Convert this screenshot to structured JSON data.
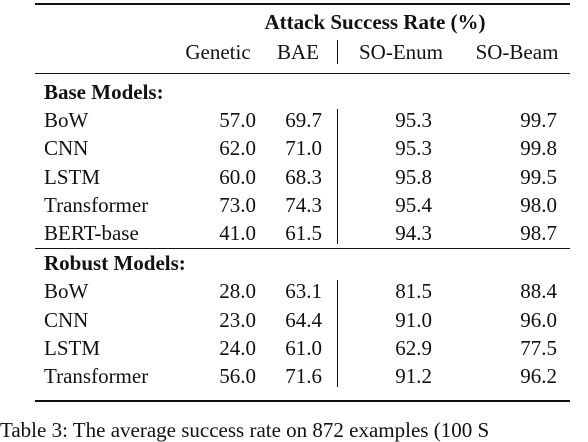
{
  "table": {
    "super_header": "Attack Success Rate (%)",
    "columns": [
      "Genetic",
      "BAE",
      "SO-Enum",
      "SO-Beam"
    ],
    "groups": [
      {
        "label": "Base Models:",
        "rows": [
          {
            "model": "BoW",
            "values": [
              "57.0",
              "69.7",
              "95.3",
              "99.7"
            ]
          },
          {
            "model": "CNN",
            "values": [
              "62.0",
              "71.0",
              "95.3",
              "99.8"
            ]
          },
          {
            "model": "LSTM",
            "values": [
              "60.0",
              "68.3",
              "95.8",
              "99.5"
            ]
          },
          {
            "model": "Transformer",
            "values": [
              "73.0",
              "74.3",
              "95.4",
              "98.0"
            ]
          },
          {
            "model": "BERT-base",
            "values": [
              "41.0",
              "61.5",
              "94.3",
              "98.7"
            ]
          }
        ]
      },
      {
        "label": "Robust Models:",
        "rows": [
          {
            "model": "BoW",
            "values": [
              "28.0",
              "63.1",
              "81.5",
              "88.4"
            ]
          },
          {
            "model": "CNN",
            "values": [
              "23.0",
              "64.4",
              "91.0",
              "96.0"
            ]
          },
          {
            "model": "LSTM",
            "values": [
              "24.0",
              "61.0",
              "62.9",
              "77.5"
            ]
          },
          {
            "model": "Transformer",
            "values": [
              "56.0",
              "71.6",
              "91.2",
              "96.2"
            ]
          }
        ]
      }
    ]
  },
  "caption": "Table 3: The average success rate on 872 examples (100 S"
}
